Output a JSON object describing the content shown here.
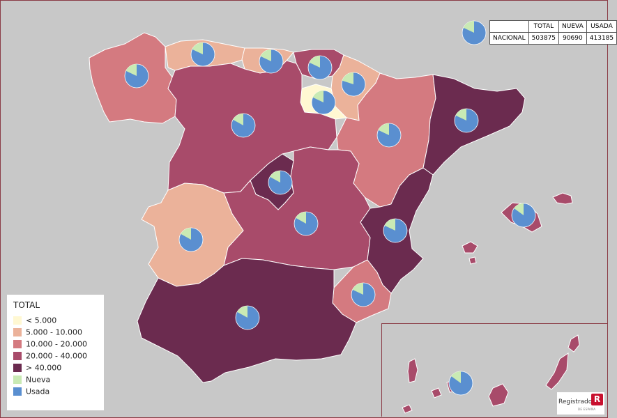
{
  "legend": {
    "title": "TOTAL",
    "items": [
      {
        "label": "< 5.000",
        "color": "#fff8d2"
      },
      {
        "label": "5.000 - 10.000",
        "color": "#ebb29a"
      },
      {
        "label": "10.000 - 20.000",
        "color": "#d47a80"
      },
      {
        "label": "20.000 - 40.000",
        "color": "#a84b6a"
      },
      {
        "label": "> 40.000",
        "color": "#6b2b4f"
      },
      {
        "label": "Nueva",
        "color": "#c9eab4"
      },
      {
        "label": "Usada",
        "color": "#5a8fd0"
      }
    ]
  },
  "summary_table": {
    "headers": [
      "",
      "TOTAL",
      "NUEVA",
      "USADA"
    ],
    "row": {
      "label": "NACIONAL",
      "total": "503875",
      "nueva": "90690",
      "usada": "413185"
    }
  },
  "pie_colors": {
    "nueva": "#c9eab4",
    "usada": "#5a8fd0"
  },
  "regions": [
    {
      "id": "galicia",
      "class": "10.000 - 20.000",
      "nueva_share": 0.18
    },
    {
      "id": "asturias",
      "class": "5.000 - 10.000",
      "nueva_share": 0.18
    },
    {
      "id": "cantabria",
      "class": "5.000 - 10.000",
      "nueva_share": 0.18
    },
    {
      "id": "pais-vasco",
      "class": "20.000 - 40.000",
      "nueva_share": 0.18
    },
    {
      "id": "navarra",
      "class": "5.000 - 10.000",
      "nueva_share": 0.2
    },
    {
      "id": "la-rioja",
      "class": "< 5.000",
      "nueva_share": 0.18
    },
    {
      "id": "castilla-leon",
      "class": "20.000 - 40.000",
      "nueva_share": 0.17
    },
    {
      "id": "aragon",
      "class": "10.000 - 20.000",
      "nueva_share": 0.18
    },
    {
      "id": "cataluna",
      "class": "> 40.000",
      "nueva_share": 0.18
    },
    {
      "id": "madrid",
      "class": "> 40.000",
      "nueva_share": 0.17
    },
    {
      "id": "castilla-la-mancha",
      "class": "20.000 - 40.000",
      "nueva_share": 0.17
    },
    {
      "id": "comunidad-valenciana",
      "class": "> 40.000",
      "nueva_share": 0.18
    },
    {
      "id": "extremadura",
      "class": "5.000 - 10.000",
      "nueva_share": 0.17
    },
    {
      "id": "murcia",
      "class": "10.000 - 20.000",
      "nueva_share": 0.18
    },
    {
      "id": "andalucia",
      "class": "> 40.000",
      "nueva_share": 0.17
    },
    {
      "id": "baleares",
      "class": "20.000 - 40.000",
      "nueva_share": 0.15
    },
    {
      "id": "canarias",
      "class": "20.000 - 40.000",
      "nueva_share": 0.15
    },
    {
      "id": "nacional",
      "class": "",
      "nueva_share": 0.18
    }
  ],
  "logo": {
    "name": "Registradores",
    "sub": "DE ESPAÑA",
    "mark": "R"
  }
}
